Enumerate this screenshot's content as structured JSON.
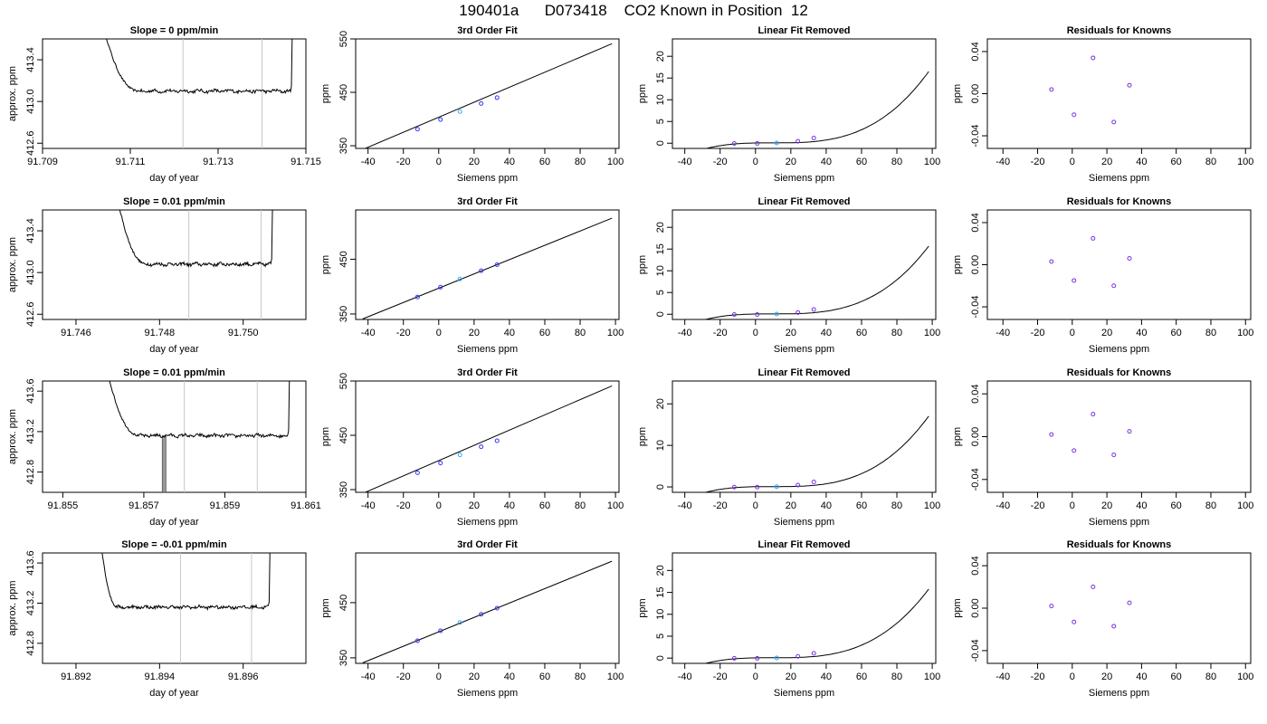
{
  "page": {
    "title": "190401a      D073418    CO2 Known in Position  12"
  },
  "chart_data": [
    {
      "type": "line",
      "panel": "trace",
      "row": 0,
      "title": "Slope =  0  ppm/min",
      "xlabel": "day of year",
      "ylabel": "approx. ppm",
      "xlim": [
        91.709,
        91.715
      ],
      "ylim": [
        412.55,
        413.6
      ],
      "xticks": [
        91.709,
        91.711,
        91.713,
        91.715
      ],
      "xticklabels": [
        "91.709",
        "91.711",
        "91.713",
        "91.715"
      ],
      "yticks": [
        412.6,
        413.0,
        413.4
      ],
      "yticklabels": [
        "412.6",
        "413.0",
        "413.4"
      ],
      "vlines": [
        91.7122,
        91.714
      ],
      "start": 91.7104,
      "dip_end": 91.7112,
      "end": 91.71465,
      "plateau": 413.1
    },
    {
      "type": "line",
      "panel": "trace",
      "row": 1,
      "title": "Slope =  0.01  ppm/min",
      "xlabel": "day of year",
      "ylabel": "approx. ppm",
      "xlim": [
        91.7452,
        91.7515
      ],
      "ylim": [
        412.55,
        413.6
      ],
      "xticks": [
        91.746,
        91.748,
        91.75
      ],
      "xticklabels": [
        "91.746",
        "91.748",
        "91.750"
      ],
      "yticks": [
        412.6,
        413.0,
        413.4
      ],
      "yticklabels": [
        "412.6",
        "413.0",
        "413.4"
      ],
      "vlines": [
        91.7487,
        91.75043
      ],
      "start": 91.747,
      "dip_end": 91.7477,
      "end": 91.75066,
      "plateau": 413.08
    },
    {
      "type": "line",
      "panel": "trace",
      "row": 2,
      "title": "Slope =  0.01  ppm/min",
      "xlabel": "day of year",
      "ylabel": "approx. ppm",
      "xlim": [
        91.8545,
        91.861
      ],
      "ylim": [
        412.6,
        413.7
      ],
      "xticks": [
        91.855,
        91.857,
        91.859,
        91.861
      ],
      "xticklabels": [
        "91.855",
        "91.857",
        "91.859",
        "91.861"
      ],
      "yticks": [
        412.8,
        413.2,
        413.6
      ],
      "yticklabels": [
        "412.8",
        "413.2",
        "413.6"
      ],
      "vlines": [
        91.858,
        91.8598
      ],
      "start": 91.8561,
      "dip_end": 91.8569,
      "end": 91.86055,
      "plateau": 413.16,
      "spike": 91.8575
    },
    {
      "type": "line",
      "panel": "trace",
      "row": 3,
      "title": "Slope =  -0.01  ppm/min",
      "xlabel": "day of year",
      "ylabel": "approx. ppm",
      "xlim": [
        91.8912,
        91.8975
      ],
      "ylim": [
        412.6,
        413.7
      ],
      "xticks": [
        91.892,
        91.894,
        91.896
      ],
      "xticklabels": [
        "91.892",
        "91.894",
        "91.896"
      ],
      "yticks": [
        412.8,
        413.2,
        413.6
      ],
      "yticklabels": [
        "412.8",
        "413.2",
        "413.6"
      ],
      "vlines": [
        91.8945,
        91.8962
      ],
      "start": 91.8926,
      "dip_end": 91.893,
      "end": 91.8966,
      "plateau": 413.16
    },
    {
      "type": "line",
      "panel": "fit",
      "row": 0,
      "title": "3rd Order Fit",
      "xlabel": "Siemens ppm",
      "ylabel": "ppm",
      "xlim": [
        -47,
        102
      ],
      "ylim": [
        345,
        550
      ],
      "xticks": [
        -40,
        -20,
        0,
        20,
        40,
        60,
        80,
        100
      ],
      "yticks": [
        350,
        450,
        550
      ],
      "yticklabels": [
        "350",
        "450",
        "550"
      ],
      "curve_x": [
        -43,
        98
      ],
      "curve_y": [
        343,
        541
      ],
      "points": {
        "x": [
          -12,
          1,
          12,
          24,
          33
        ],
        "y": [
          381,
          399,
          414,
          429,
          440
        ]
      }
    },
    {
      "type": "line",
      "panel": "fit",
      "row": 1,
      "title": "3rd Order Fit",
      "xlabel": "Siemens ppm",
      "ylabel": "ppm",
      "xlim": [
        -47,
        102
      ],
      "ylim": [
        340,
        540
      ],
      "xticks": [
        -40,
        -20,
        0,
        20,
        40,
        60,
        80,
        100
      ],
      "yticks": [
        350,
        450
      ],
      "yticklabels": [
        "350",
        "450"
      ],
      "curve_x": [
        -43,
        98
      ],
      "curve_y": [
        341,
        525
      ],
      "points": {
        "x": [
          -12,
          1,
          12,
          24,
          33
        ],
        "y": [
          381,
          399,
          414,
          429,
          440
        ]
      }
    },
    {
      "type": "line",
      "panel": "fit",
      "row": 2,
      "title": "3rd Order Fit",
      "xlabel": "Siemens ppm",
      "ylabel": "ppm",
      "xlim": [
        -47,
        102
      ],
      "ylim": [
        345,
        550
      ],
      "xticks": [
        -40,
        -20,
        0,
        20,
        40,
        60,
        80,
        100
      ],
      "yticks": [
        350,
        450,
        550
      ],
      "yticklabels": [
        "350",
        "450",
        "550"
      ],
      "curve_x": [
        -43,
        98
      ],
      "curve_y": [
        343,
        541
      ],
      "points": {
        "x": [
          -12,
          1,
          12,
          24,
          33
        ],
        "y": [
          381,
          399,
          414,
          429,
          440
        ]
      }
    },
    {
      "type": "line",
      "panel": "fit",
      "row": 3,
      "title": "3rd Order Fit",
      "xlabel": "Siemens ppm",
      "ylabel": "ppm",
      "xlim": [
        -47,
        102
      ],
      "ylim": [
        340,
        540
      ],
      "xticks": [
        -40,
        -20,
        0,
        20,
        40,
        60,
        80,
        100
      ],
      "yticks": [
        350,
        450
      ],
      "yticklabels": [
        "350",
        "450"
      ],
      "curve_x": [
        -43,
        98
      ],
      "curve_y": [
        341,
        525
      ],
      "points": {
        "x": [
          -12,
          1,
          12,
          24,
          33
        ],
        "y": [
          381,
          399,
          414,
          429,
          440
        ]
      }
    },
    {
      "type": "line",
      "panel": "linres",
      "row": 0,
      "title": "Linear Fit Removed",
      "xlabel": "Siemens ppm",
      "ylabel": "ppm",
      "xlim": [
        -47,
        102
      ],
      "ylim": [
        -1.2,
        24
      ],
      "xticks": [
        -40,
        -20,
        0,
        20,
        40,
        60,
        80,
        100
      ],
      "yticks": [
        0,
        5,
        10,
        15,
        20
      ],
      "cubic": {
        "a": 2.41e-05,
        "b": 0.08
      },
      "points": {
        "x": [
          -12,
          1,
          12,
          24,
          33
        ],
        "y": [
          -0.05,
          -0.05,
          0.05,
          0.45,
          1.2
        ]
      }
    },
    {
      "type": "line",
      "panel": "linres",
      "row": 1,
      "title": "Linear Fit Removed",
      "xlabel": "Siemens ppm",
      "ylabel": "ppm",
      "xlim": [
        -47,
        102
      ],
      "ylim": [
        -1.2,
        24
      ],
      "xticks": [
        -40,
        -20,
        0,
        20,
        40,
        60,
        80,
        100
      ],
      "yticks": [
        0,
        5,
        10,
        15,
        20
      ],
      "cubic": {
        "a": 2.29e-05,
        "b": 0.08
      },
      "points": {
        "x": [
          -12,
          1,
          12,
          24,
          33
        ],
        "y": [
          -0.05,
          -0.05,
          0.05,
          0.4,
          1.1
        ]
      }
    },
    {
      "type": "line",
      "panel": "linres",
      "row": 2,
      "title": "Linear Fit Removed",
      "xlabel": "Siemens ppm",
      "ylabel": "ppm",
      "xlim": [
        -47,
        102
      ],
      "ylim": [
        -1.3,
        25.5
      ],
      "xticks": [
        -40,
        -20,
        0,
        20,
        40,
        60,
        80,
        100
      ],
      "yticks": [
        0,
        10,
        20
      ],
      "cubic": {
        "a": 2.49e-05,
        "b": 0.08
      },
      "points": {
        "x": [
          -12,
          1,
          12,
          24,
          33
        ],
        "y": [
          -0.05,
          -0.05,
          0.05,
          0.45,
          1.2
        ]
      }
    },
    {
      "type": "line",
      "panel": "linres",
      "row": 3,
      "title": "Linear Fit Removed",
      "xlabel": "Siemens ppm",
      "ylabel": "ppm",
      "xlim": [
        -47,
        102
      ],
      "ylim": [
        -1.2,
        24
      ],
      "xticks": [
        -40,
        -20,
        0,
        20,
        40,
        60,
        80,
        100
      ],
      "yticks": [
        0,
        5,
        10,
        15,
        20
      ],
      "cubic": {
        "a": 2.3e-05,
        "b": 0.08
      },
      "points": {
        "x": [
          -12,
          1,
          12,
          24,
          33
        ],
        "y": [
          -0.05,
          -0.05,
          0.05,
          0.4,
          1.1
        ]
      }
    },
    {
      "type": "scatter",
      "panel": "resid",
      "row": 0,
      "title": "Residuals for Knowns",
      "xlabel": "Siemens ppm",
      "ylabel": "ppm",
      "xlim": [
        -49,
        103
      ],
      "ylim": [
        -0.052,
        0.052
      ],
      "xticks": [
        -40,
        -20,
        0,
        20,
        40,
        60,
        80,
        100
      ],
      "yticks": [
        -0.04,
        0,
        0.04
      ],
      "yticklabels": [
        "-0.04",
        "0.00",
        "0.04"
      ],
      "points": {
        "x": [
          -12,
          1,
          12,
          24,
          33
        ],
        "y": [
          0.004,
          -0.02,
          0.034,
          -0.027,
          0.008
        ]
      }
    },
    {
      "type": "scatter",
      "panel": "resid",
      "row": 1,
      "title": "Residuals for Knowns",
      "xlabel": "Siemens ppm",
      "ylabel": "ppm",
      "xlim": [
        -49,
        103
      ],
      "ylim": [
        -0.052,
        0.052
      ],
      "xticks": [
        -40,
        -20,
        0,
        20,
        40,
        60,
        80,
        100
      ],
      "yticks": [
        -0.04,
        0,
        0.04
      ],
      "yticklabels": [
        "-0.04",
        "0.00",
        "0.04"
      ],
      "points": {
        "x": [
          -12,
          1,
          12,
          24,
          33
        ],
        "y": [
          0.003,
          -0.015,
          0.025,
          -0.02,
          0.006
        ]
      }
    },
    {
      "type": "scatter",
      "panel": "resid",
      "row": 2,
      "title": "Residuals for Knowns",
      "xlabel": "Siemens ppm",
      "ylabel": "ppm",
      "xlim": [
        -49,
        103
      ],
      "ylim": [
        -0.052,
        0.052
      ],
      "xticks": [
        -40,
        -20,
        0,
        20,
        40,
        60,
        80,
        100
      ],
      "yticks": [
        -0.04,
        0,
        0.04
      ],
      "yticklabels": [
        "-0.04",
        "0.00",
        "0.04"
      ],
      "points": {
        "x": [
          -12,
          1,
          12,
          24,
          33
        ],
        "y": [
          0.002,
          -0.013,
          0.021,
          -0.017,
          0.005
        ]
      }
    },
    {
      "type": "scatter",
      "panel": "resid",
      "row": 3,
      "title": "Residuals for Knowns",
      "xlabel": "Siemens ppm",
      "ylabel": "ppm",
      "xlim": [
        -49,
        103
      ],
      "ylim": [
        -0.052,
        0.052
      ],
      "xticks": [
        -40,
        -20,
        0,
        20,
        40,
        60,
        80,
        100
      ],
      "yticks": [
        -0.04,
        0,
        0.04
      ],
      "yticklabels": [
        "-0.04",
        "0.00",
        "0.04"
      ],
      "points": {
        "x": [
          -12,
          1,
          12,
          24,
          33
        ],
        "y": [
          0.002,
          -0.013,
          0.02,
          -0.017,
          0.005
        ]
      }
    }
  ]
}
